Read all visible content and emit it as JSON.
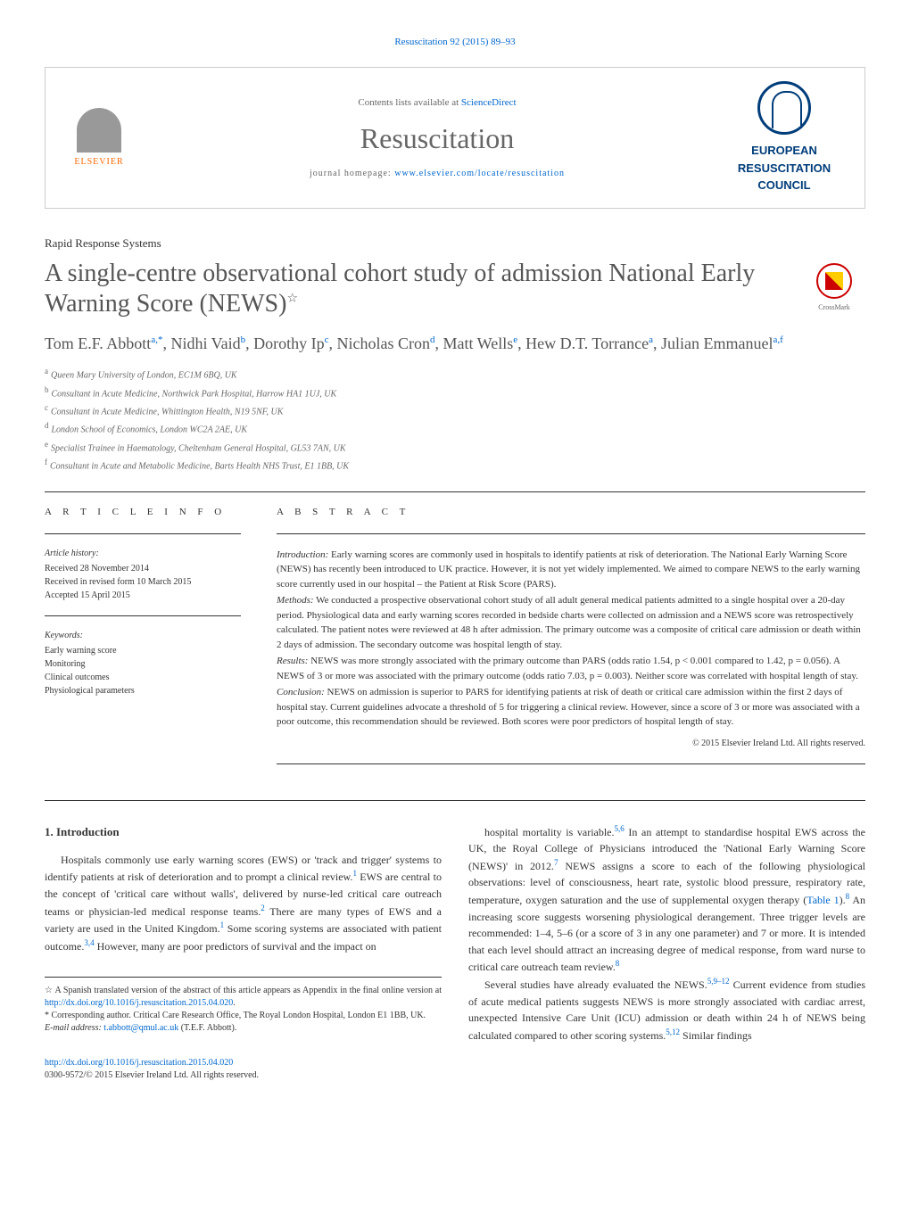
{
  "journal_ref": "Resuscitation 92 (2015) 89–93",
  "header": {
    "contents_prefix": "Contents lists available at ",
    "contents_link": "ScienceDirect",
    "journal_name": "Resuscitation",
    "homepage_prefix": "journal homepage: ",
    "homepage_link": "www.elsevier.com/locate/resuscitation",
    "elsevier": "ELSEVIER",
    "erc_line1": "EUROPEAN",
    "erc_line2": "RESUSCITATION",
    "erc_line3": "COUNCIL"
  },
  "article_type": "Rapid Response Systems",
  "title": "A single-centre observational cohort study of admission National Early Warning Score (NEWS)",
  "title_star": "☆",
  "crossmark": "CrossMark",
  "authors_html": "Tom E.F. Abbott<sup>a,*</sup>, Nidhi Vaid<sup>b</sup>, Dorothy Ip<sup>c</sup>, Nicholas Cron<sup>d</sup>, Matt Wells<sup>e</sup>, Hew D.T. Torrance<sup>a</sup>, Julian Emmanuel<sup>a,f</sup>",
  "affiliations": [
    {
      "sup": "a",
      "text": "Queen Mary University of London, EC1M 6BQ, UK"
    },
    {
      "sup": "b",
      "text": "Consultant in Acute Medicine, Northwick Park Hospital, Harrow HA1 1UJ, UK"
    },
    {
      "sup": "c",
      "text": "Consultant in Acute Medicine, Whittington Health, N19 5NF, UK"
    },
    {
      "sup": "d",
      "text": "London School of Economics, London WC2A 2AE, UK"
    },
    {
      "sup": "e",
      "text": "Specialist Trainee in Haematology, Cheltenham General Hospital, GL53 7AN, UK"
    },
    {
      "sup": "f",
      "text": "Consultant in Acute and Metabolic Medicine, Barts Health NHS Trust, E1 1BB, UK"
    }
  ],
  "article_info": {
    "heading": "A R T I C L E   I N F O",
    "history_label": "Article history:",
    "history": "Received 28 November 2014\nReceived in revised form 10 March 2015\nAccepted 15 April 2015",
    "keywords_label": "Keywords:",
    "keywords": "Early warning score\nMonitoring\nClinical outcomes\nPhysiological parameters"
  },
  "abstract": {
    "heading": "A B S T R A C T",
    "intro_label": "Introduction:",
    "intro": " Early warning scores are commonly used in hospitals to identify patients at risk of deterioration. The National Early Warning Score (NEWS) has recently been introduced to UK practice. However, it is not yet widely implemented. We aimed to compare NEWS to the early warning score currently used in our hospital – the Patient at Risk Score (PARS).",
    "methods_label": "Methods:",
    "methods": " We conducted a prospective observational cohort study of all adult general medical patients admitted to a single hospital over a 20-day period. Physiological data and early warning scores recorded in bedside charts were collected on admission and a NEWS score was retrospectively calculated. The patient notes were reviewed at 48 h after admission. The primary outcome was a composite of critical care admission or death within 2 days of admission. The secondary outcome was hospital length of stay.",
    "results_label": "Results:",
    "results": " NEWS was more strongly associated with the primary outcome than PARS (odds ratio 1.54, p < 0.001 compared to 1.42, p = 0.056). A NEWS of 3 or more was associated with the primary outcome (odds ratio 7.03, p = 0.003). Neither score was correlated with hospital length of stay.",
    "conclusion_label": "Conclusion:",
    "conclusion": " NEWS on admission is superior to PARS for identifying patients at risk of death or critical care admission within the first 2 days of hospital stay. Current guidelines advocate a threshold of 5 for triggering a clinical review. However, since a score of 3 or more was associated with a poor outcome, this recommendation should be reviewed. Both scores were poor predictors of hospital length of stay.",
    "copyright": "© 2015 Elsevier Ireland Ltd. All rights reserved."
  },
  "body": {
    "section_num": "1.",
    "section_title": "Introduction",
    "col1_p1": "Hospitals commonly use early warning scores (EWS) or 'track and trigger' systems to identify patients at risk of deterioration and to prompt a clinical review.<sup>1</sup> EWS are central to the concept of 'critical care without walls', delivered by nurse-led critical care outreach teams or physician-led medical response teams.<sup>2</sup> There are many types of EWS and a variety are used in the United Kingdom.<sup>1</sup> Some scoring systems are associated with patient outcome.<sup>3,4</sup> However, many are poor predictors of survival and the impact on",
    "col2_p1": "hospital mortality is variable.<sup>5,6</sup> In an attempt to standardise hospital EWS across the UK, the Royal College of Physicians introduced the 'National Early Warning Score (NEWS)' in 2012.<sup>7</sup> NEWS assigns a score to each of the following physiological observations: level of consciousness, heart rate, systolic blood pressure, respiratory rate, temperature, oxygen saturation and the use of supplemental oxygen therapy (<a href=\"#\">Table 1</a>).<sup>8</sup> An increasing score suggests worsening physiological derangement. Three trigger levels are recommended: 1–4, 5–6 (or a score of 3 in any one parameter) and 7 or more. It is intended that each level should attract an increasing degree of medical response, from ward nurse to critical care outreach team review.<sup>8</sup>",
    "col2_p2": "Several studies have already evaluated the NEWS.<sup>5,9–12</sup> Current evidence from studies of acute medical patients suggests NEWS is more strongly associated with cardiac arrest, unexpected Intensive Care Unit (ICU) admission or death within 24 h of NEWS being calculated compared to other scoring systems.<sup>5,12</sup> Similar findings"
  },
  "footnotes": {
    "star": "☆ A Spanish translated version of the abstract of this article appears as Appendix in the final online version at ",
    "star_link": "http://dx.doi.org/10.1016/j.resuscitation.2015.04.020",
    "corr": "* Corresponding author. Critical Care Research Office, The Royal London Hospital, London E1 1BB, UK.",
    "email_label": "E-mail address: ",
    "email": "t.abbott@qmul.ac.uk",
    "email_suffix": " (T.E.F. Abbott)."
  },
  "footer": {
    "doi": "http://dx.doi.org/10.1016/j.resuscitation.2015.04.020",
    "issn": "0300-9572/© 2015 Elsevier Ireland Ltd. All rights reserved."
  },
  "colors": {
    "link": "#0066cc",
    "erc_blue": "#003d7a",
    "elsevier_orange": "#ff6600",
    "text": "#333333",
    "title_gray": "#555555"
  }
}
